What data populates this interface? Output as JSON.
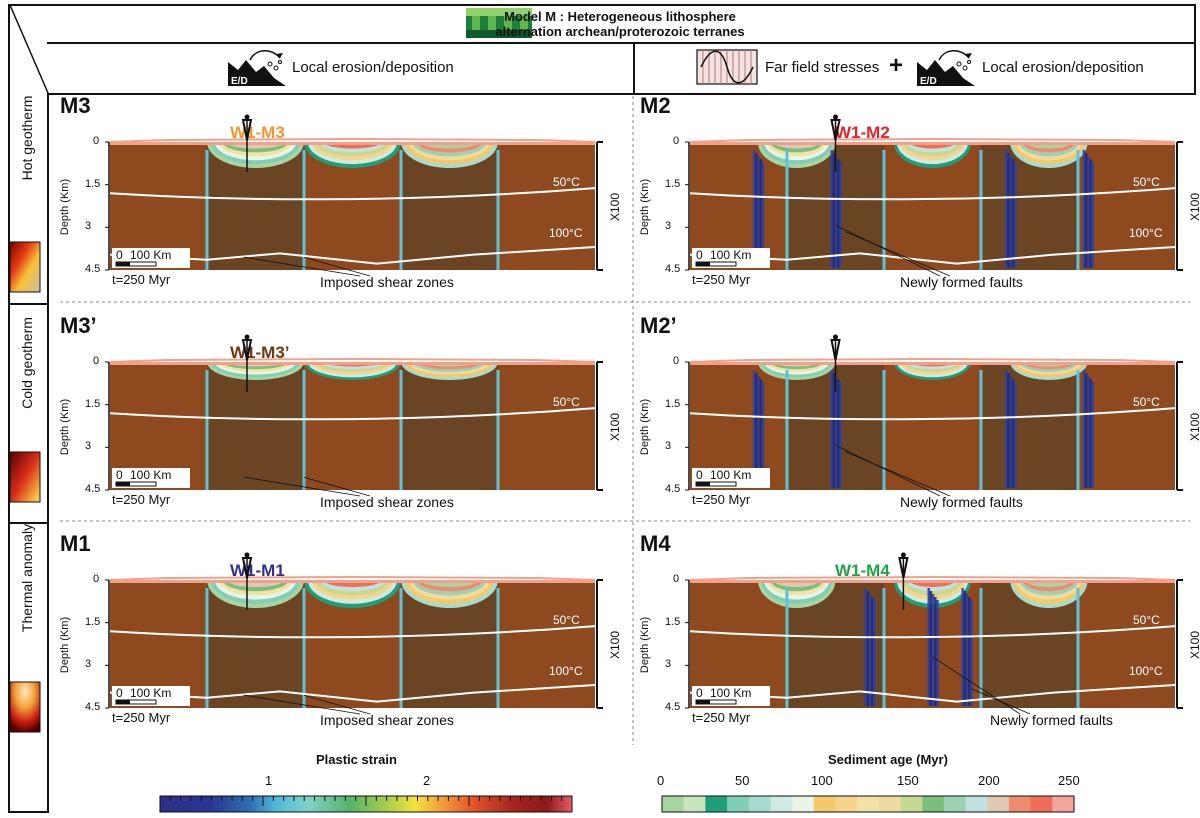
{
  "header": {
    "title_line1": "Model M : Heterogeneous lithosphere",
    "title_line2": "alternation archean/proterozoic terranes"
  },
  "columns": {
    "left_label": "Local erosion/deposition",
    "right_label_a": "Far field stresses",
    "right_plus": "+",
    "right_label_b": "Local erosion/deposition",
    "icon_ed_text": "E/D"
  },
  "rows": [
    {
      "label": "Hot geotherm"
    },
    {
      "label": "Cold geotherm"
    },
    {
      "label": "Thermal anomaly"
    }
  ],
  "panels": [
    {
      "id": "M3",
      "well": "W1-M3",
      "well_color": "#f3952f",
      "annotation": "Imposed shear zones",
      "time": "t=250 Myr",
      "faults": false
    },
    {
      "id": "M2",
      "well": "W1-M2",
      "well_color": "#e3222b",
      "annotation": "Newly formed faults",
      "time": "t=250 Myr",
      "faults": true
    },
    {
      "id": "M3’",
      "well": "W1-M3’",
      "well_color": "#6b3a12",
      "annotation": "Imposed shear zones",
      "time": "t=250 Myr",
      "faults": false
    },
    {
      "id": "M2’",
      "well": "",
      "well_color": "#000000",
      "annotation": "Newly formed faults",
      "time": "t=250 Myr",
      "faults": true
    },
    {
      "id": "M1",
      "well": "W1-M1",
      "well_color": "#2e3192",
      "annotation": "Imposed shear zones",
      "time": "t=250 Myr",
      "faults": false
    },
    {
      "id": "M4",
      "well": "W1-M4",
      "well_color": "#1fa34a",
      "annotation": "Newly formed faults",
      "time": "t=250 Myr",
      "faults": true
    }
  ],
  "axis": {
    "title": "Depth (Km)",
    "ticks": [
      "0",
      "1.5",
      "3",
      "4.5"
    ],
    "vertical_exaggeration": "X100",
    "scale_bar_zero": "0",
    "scale_bar_label": "100 Km",
    "isotherm_50": "50°C",
    "isotherm_100": "100°C"
  },
  "colorbars": {
    "plastic_strain": {
      "title": "Plastic strain",
      "ticks": [
        "1",
        "2"
      ]
    },
    "sediment_age": {
      "title": "Sediment age  (Myr)",
      "ticks": [
        "0",
        "50",
        "100",
        "150",
        "200",
        "250"
      ]
    }
  },
  "colors": {
    "archean": "#6b4423",
    "proterozoic": "#8e4a1e",
    "shear_zone": "#5ec3d9",
    "fault": "#2f3f9e",
    "isotherm": "#ffffff",
    "topsoil": "#f2a08a"
  }
}
